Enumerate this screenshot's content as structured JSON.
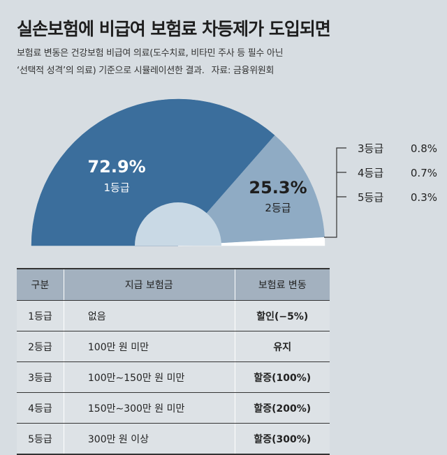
{
  "title": "실손보험에 비급여 보험료 차등제가 도입되면",
  "subtitle_line1": "보험료 변동은 건강보험 비급여 의료(도수치료, 비타민 주사 등 필수 아닌",
  "subtitle_line2": "‘선택적 성격’의 의료) 기준으로 시뮬레이션한 결과.",
  "source": "자료: 금융위원회",
  "colors": {
    "grade1": "#3b6e9c",
    "grade2": "#8fabc4",
    "grade3_5": "#ffffff",
    "inner": "#c9d9e5"
  },
  "chart_data": {
    "type": "pie",
    "shape": "half-donut",
    "unit": "%",
    "slices": [
      {
        "name": "1등급",
        "value": 72.9,
        "label": "72.9%"
      },
      {
        "name": "2등급",
        "value": 25.3,
        "label": "25.3%"
      },
      {
        "name": "3등급",
        "value": 0.8,
        "label": "0.8%"
      },
      {
        "name": "4등급",
        "value": 0.7,
        "label": "0.7%"
      },
      {
        "name": "5등급",
        "value": 0.3,
        "label": "0.3%"
      }
    ]
  },
  "table": {
    "headers": [
      "구분",
      "지급 보험금",
      "보험료 변동"
    ],
    "rows": [
      [
        "1등급",
        "없음",
        "할인(−5%)"
      ],
      [
        "2등급",
        "100만 원 미만",
        "유지"
      ],
      [
        "3등급",
        "100만∼150만 원 미만",
        "할증(100%)"
      ],
      [
        "4등급",
        "150만∼300만 원 미만",
        "할증(200%)"
      ],
      [
        "5등급",
        "300만 원 이상",
        "할증(300%)"
      ]
    ]
  }
}
